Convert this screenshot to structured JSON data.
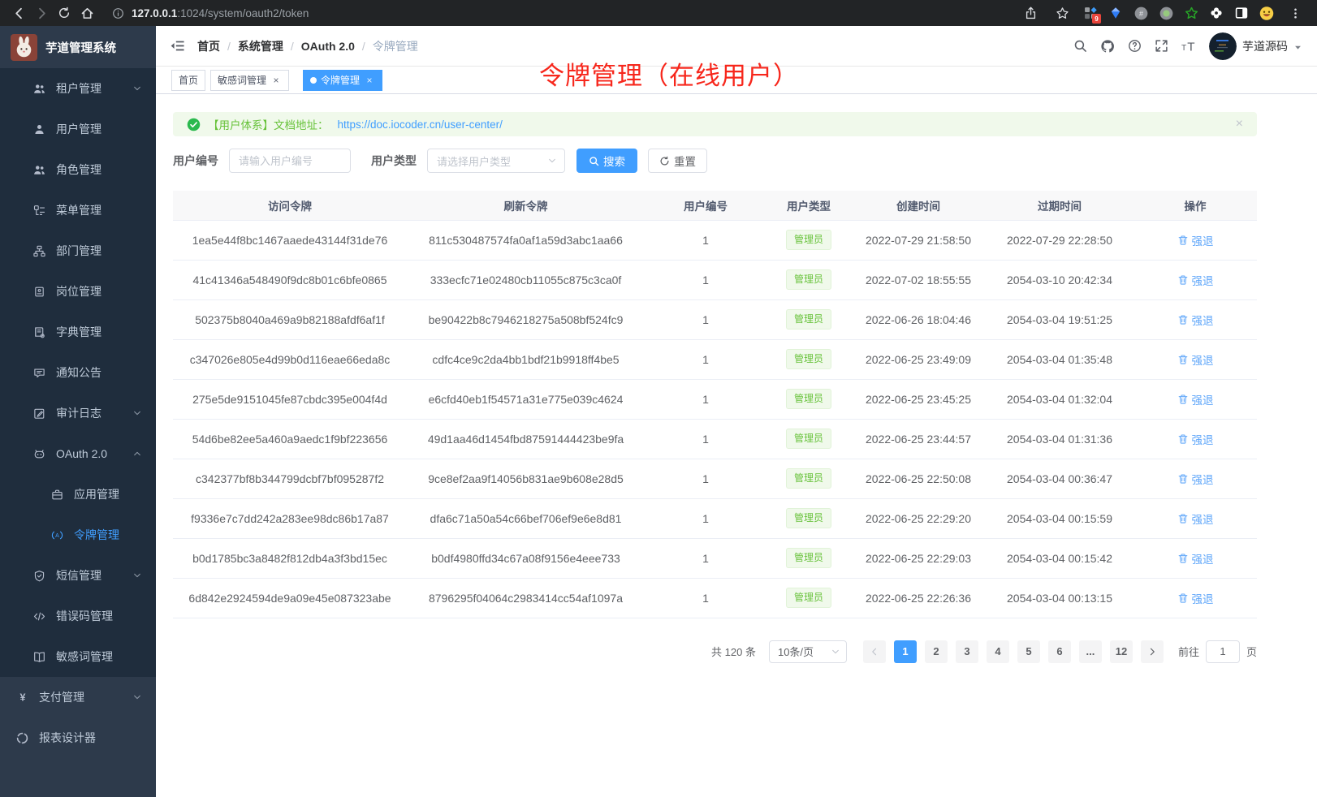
{
  "colors": {
    "accent": "#409eff",
    "success": "#67c23a",
    "danger": "#f7271c",
    "linkblue": "#60a7fa"
  },
  "browser": {
    "url_host": "127.0.0.1",
    "url_rest": ":1024/system/oauth2/token",
    "extension_badge": "9"
  },
  "sidebar": {
    "app_title": "芋道管理系统",
    "items": [
      {
        "icon": "users-icon",
        "label": "租户管理",
        "arrow_icon": "chevron-down-icon",
        "lvl1": true
      },
      {
        "icon": "user-icon",
        "label": "用户管理",
        "lvl1": true
      },
      {
        "icon": "role-icon",
        "label": "角色管理",
        "lvl1": true
      },
      {
        "icon": "menu-tree-icon",
        "label": "菜单管理",
        "lvl1": true
      },
      {
        "icon": "org-chart-icon",
        "label": "部门管理",
        "lvl1": true
      },
      {
        "icon": "id-badge-icon",
        "label": "岗位管理",
        "lvl1": true
      },
      {
        "icon": "dictionary-icon",
        "label": "字典管理",
        "lvl1": true
      },
      {
        "icon": "announcement-icon",
        "label": "通知公告",
        "lvl1": true
      },
      {
        "icon": "audit-log-icon",
        "label": "审计日志",
        "arrow_icon": "chevron-down-icon",
        "lvl1": true
      },
      {
        "icon": "oauth-robot-icon",
        "label": "OAuth 2.0",
        "arrow_icon": "chevron-up-icon",
        "lvl1": true
      },
      {
        "icon": "briefcase-icon",
        "label": "应用管理",
        "lvl2": true
      },
      {
        "icon": "token-signal-icon",
        "label": "令牌管理",
        "lvl2": true,
        "active": true
      },
      {
        "icon": "shield-icon",
        "label": "短信管理",
        "arrow_icon": "chevron-down-icon",
        "lvl1": true
      },
      {
        "icon": "code-icon",
        "label": "错误码管理",
        "lvl1": true
      },
      {
        "icon": "open-book-icon",
        "label": "敏感词管理",
        "lvl1": true
      },
      {
        "icon": "yen-icon",
        "label": "支付管理",
        "arrow_icon": "chevron-down-icon",
        "top": true
      },
      {
        "icon": "report-icon",
        "label": "报表设计器",
        "top": true
      }
    ]
  },
  "navbar": {
    "breadcrumb": [
      {
        "label": "首页"
      },
      {
        "label": "系统管理"
      },
      {
        "label": "OAuth 2.0"
      },
      {
        "label": "令牌管理"
      }
    ],
    "username": "芋道源码"
  },
  "tabs": [
    {
      "label": "首页"
    },
    {
      "label": "敏感词管理",
      "closable": true
    },
    {
      "label": "令牌管理",
      "closable": true,
      "active": true
    }
  ],
  "annotation": "令牌管理（在线用户）",
  "alert": {
    "text": "【用户体系】文档地址：",
    "link": "https://doc.iocoder.cn/user-center/"
  },
  "filters": {
    "user_id_label": "用户编号",
    "user_id_placeholder": "请输入用户编号",
    "user_type_label": "用户类型",
    "user_type_placeholder": "请选择用户类型",
    "search_label": "搜索",
    "reset_label": "重置"
  },
  "table": {
    "columns": [
      "访问令牌",
      "刷新令牌",
      "用户编号",
      "用户类型",
      "创建时间",
      "过期时间",
      "操作"
    ],
    "rows": [
      {
        "access_token": "1ea5e44f8bc1467aaede43144f31de76",
        "refresh_token": "811c530487574fa0af1a59d3abc1aa66",
        "user_id": "1",
        "user_type": "管理员",
        "created_at": "2022-07-29 21:58:50",
        "expires_at": "2022-07-29 22:28:50",
        "action_label": "强退"
      },
      {
        "access_token": "41c41346a548490f9dc8b01c6bfe0865",
        "refresh_token": "333ecfc71e02480cb11055c875c3ca0f",
        "user_id": "1",
        "user_type": "管理员",
        "created_at": "2022-07-02 18:55:55",
        "expires_at": "2054-03-10 20:42:34",
        "action_label": "强退"
      },
      {
        "access_token": "502375b8040a469a9b82188afdf6af1f",
        "refresh_token": "be90422b8c7946218275a508bf524fc9",
        "user_id": "1",
        "user_type": "管理员",
        "created_at": "2022-06-26 18:04:46",
        "expires_at": "2054-03-04 19:51:25",
        "action_label": "强退"
      },
      {
        "access_token": "c347026e805e4d99b0d116eae66eda8c",
        "refresh_token": "cdfc4ce9c2da4bb1bdf21b9918ff4be5",
        "user_id": "1",
        "user_type": "管理员",
        "created_at": "2022-06-25 23:49:09",
        "expires_at": "2054-03-04 01:35:48",
        "action_label": "强退"
      },
      {
        "access_token": "275e5de9151045fe87cbdc395e004f4d",
        "refresh_token": "e6cfd40eb1f54571a31e775e039c4624",
        "user_id": "1",
        "user_type": "管理员",
        "created_at": "2022-06-25 23:45:25",
        "expires_at": "2054-03-04 01:32:04",
        "action_label": "强退"
      },
      {
        "access_token": "54d6be82ee5a460a9aedc1f9bf223656",
        "refresh_token": "49d1aa46d1454fbd87591444423be9fa",
        "user_id": "1",
        "user_type": "管理员",
        "created_at": "2022-06-25 23:44:57",
        "expires_at": "2054-03-04 01:31:36",
        "action_label": "强退"
      },
      {
        "access_token": "c342377bf8b344799dcbf7bf095287f2",
        "refresh_token": "9ce8ef2aa9f14056b831ae9b608e28d5",
        "user_id": "1",
        "user_type": "管理员",
        "created_at": "2022-06-25 22:50:08",
        "expires_at": "2054-03-04 00:36:47",
        "action_label": "强退"
      },
      {
        "access_token": "f9336e7c7dd242a283ee98dc86b17a87",
        "refresh_token": "dfa6c71a50a54c66bef706ef9e6e8d81",
        "user_id": "1",
        "user_type": "管理员",
        "created_at": "2022-06-25 22:29:20",
        "expires_at": "2054-03-04 00:15:59",
        "action_label": "强退"
      },
      {
        "access_token": "b0d1785bc3a8482f812db4a3f3bd15ec",
        "refresh_token": "b0df4980ffd34c67a08f9156e4eee733",
        "user_id": "1",
        "user_type": "管理员",
        "created_at": "2022-06-25 22:29:03",
        "expires_at": "2054-03-04 00:15:42",
        "action_label": "强退"
      },
      {
        "access_token": "6d842e2924594de9a09e45e087323abe",
        "refresh_token": "8796295f04064c2983414cc54af1097a",
        "user_id": "1",
        "user_type": "管理员",
        "created_at": "2022-06-25 22:26:36",
        "expires_at": "2054-03-04 00:13:15",
        "action_label": "强退"
      }
    ]
  },
  "pagination": {
    "total": "共 120 条",
    "page_size": "10条/页",
    "pages": [
      {
        "label": "1",
        "active": true
      },
      {
        "label": "2"
      },
      {
        "label": "3"
      },
      {
        "label": "4"
      },
      {
        "label": "5"
      },
      {
        "label": "6"
      },
      {
        "label": "..."
      },
      {
        "label": "12"
      }
    ],
    "goto_label": "前往",
    "goto_value": "1",
    "goto_suffix": "页"
  }
}
